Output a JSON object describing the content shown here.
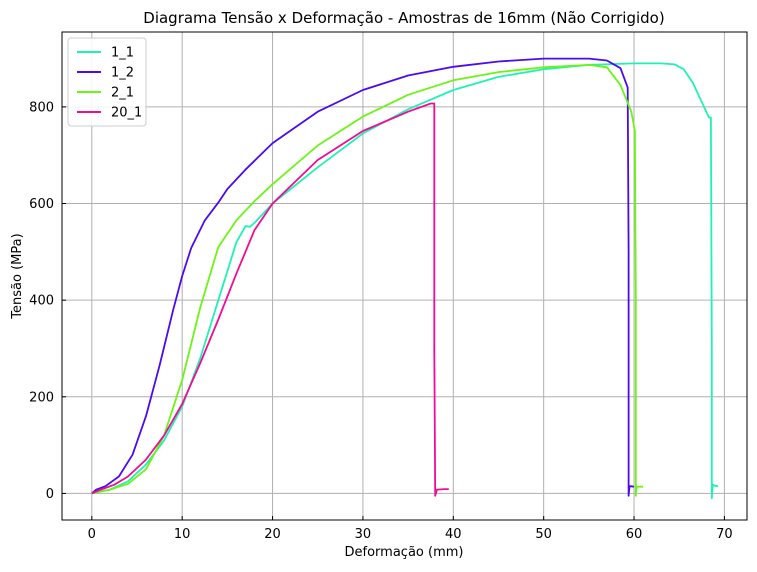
{
  "chart_data": {
    "type": "line",
    "title": "Diagrama Tensão x Deformação - Amostras de 16mm (Não Corrigido)",
    "xlabel": "Deformação (mm)",
    "ylabel": "Tensão (MPa)",
    "xlim": [
      -3.3,
      72.5
    ],
    "ylim": [
      -55,
      955
    ],
    "xticks": [
      0,
      10,
      20,
      30,
      40,
      50,
      60,
      70
    ],
    "yticks": [
      0,
      200,
      400,
      600,
      800
    ],
    "grid": true,
    "legend_position": "top-left",
    "series": [
      {
        "name": "1_1",
        "color": "#1ff2b4",
        "x": [
          0,
          2,
          4,
          6,
          8,
          10,
          12,
          14,
          16,
          17,
          17.5,
          18,
          20,
          25,
          30,
          35,
          40,
          45,
          50,
          55,
          60,
          63,
          64.5,
          65.5,
          66.5,
          67.5,
          68.3,
          68.5,
          68.6,
          68.6,
          68.7,
          68.9,
          69.3
        ],
        "y": [
          0,
          8,
          25,
          60,
          110,
          180,
          280,
          400,
          520,
          553,
          552,
          560,
          600,
          675,
          745,
          795,
          835,
          862,
          878,
          887,
          890,
          890,
          888,
          878,
          850,
          810,
          778,
          778,
          300,
          -10,
          18,
          16,
          15
        ]
      },
      {
        "name": "1_2",
        "color": "#4b0af0",
        "x": [
          0,
          0.5,
          1.5,
          3,
          4.5,
          6,
          7.5,
          9,
          10,
          11,
          12.5,
          14,
          15,
          17,
          20,
          25,
          30,
          35,
          40,
          45,
          50,
          55,
          57,
          58.5,
          59.3,
          59.4,
          59.4,
          59.5,
          59.6,
          60
        ],
        "y": [
          0,
          8,
          15,
          35,
          80,
          160,
          265,
          380,
          450,
          508,
          565,
          602,
          630,
          670,
          725,
          790,
          835,
          865,
          883,
          894,
          900,
          900,
          896,
          880,
          840,
          500,
          -5,
          15,
          15,
          14
        ]
      },
      {
        "name": "2_1",
        "color": "#6cf416",
        "x": [
          0,
          2,
          4,
          6,
          8,
          10,
          12,
          14,
          16,
          18,
          20,
          25,
          30,
          35,
          40,
          45,
          50,
          55,
          57,
          58.5,
          59.7,
          60.1,
          60.2,
          60.2,
          60.3,
          60.6,
          61
        ],
        "y": [
          0,
          8,
          20,
          50,
          120,
          235,
          385,
          510,
          565,
          605,
          640,
          720,
          780,
          825,
          855,
          872,
          882,
          887,
          882,
          845,
          790,
          750,
          400,
          -5,
          14,
          14,
          14
        ]
      },
      {
        "name": "20_1",
        "color": "#f00c96",
        "x": [
          0,
          1,
          2.5,
          4,
          6,
          8,
          10,
          12,
          14,
          16,
          18,
          20,
          25,
          30,
          35,
          37.5,
          37.9,
          37.9,
          38,
          38.2,
          39,
          39.5
        ],
        "y": [
          0,
          8,
          18,
          35,
          70,
          120,
          185,
          270,
          360,
          455,
          545,
          600,
          690,
          750,
          790,
          807,
          807,
          300,
          -5,
          8,
          9,
          9
        ]
      }
    ]
  }
}
